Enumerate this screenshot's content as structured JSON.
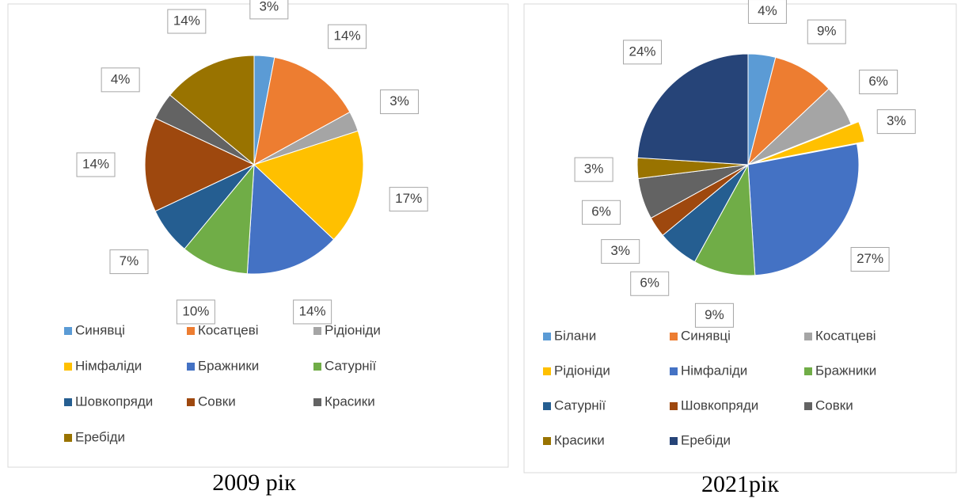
{
  "chart_data": [
    {
      "type": "pie",
      "caption": "2009 рік",
      "categories": [
        "Синявці",
        "Косатцеві",
        "Рідіоніди",
        "Німфаліди",
        "Бражники",
        "Сатурнії",
        "Шовкопряди",
        "Совки",
        "Красики",
        "Еребіди"
      ],
      "values": [
        3,
        14,
        3,
        17,
        14,
        10,
        7,
        14,
        4,
        14
      ],
      "value_labels": [
        "3%",
        "14%",
        "3%",
        "17%",
        "14%",
        "10%",
        "7%",
        "14%",
        "4%",
        "14%"
      ],
      "colors": [
        "#5b9bd5",
        "#ed7d31",
        "#a5a5a5",
        "#ffc000",
        "#4472c4",
        "#70ad47",
        "#255e91",
        "#9e480e",
        "#636363",
        "#997300"
      ],
      "legend": "bottom"
    },
    {
      "type": "pie",
      "caption": "2021рік",
      "categories": [
        "Білани",
        "Синявці",
        "Косатцеві",
        "Рідіоніди",
        "Німфаліди",
        "Бражники",
        "Сатурнії",
        "Шовкопряди",
        "Совки",
        "Красики",
        "Еребіди"
      ],
      "values": [
        4,
        9,
        6,
        3,
        27,
        9,
        6,
        3,
        6,
        3,
        24
      ],
      "value_labels": [
        "4%",
        "9%",
        "6%",
        "3%",
        "27%",
        "9%",
        "6%",
        "3%",
        "6%",
        "3%",
        "24%"
      ],
      "colors": [
        "#5b9bd5",
        "#ed7d31",
        "#a5a5a5",
        "#ffc000",
        "#4472c4",
        "#70ad47",
        "#255e91",
        "#9e480e",
        "#636363",
        "#997300",
        "#264478"
      ],
      "legend": "bottom"
    }
  ]
}
